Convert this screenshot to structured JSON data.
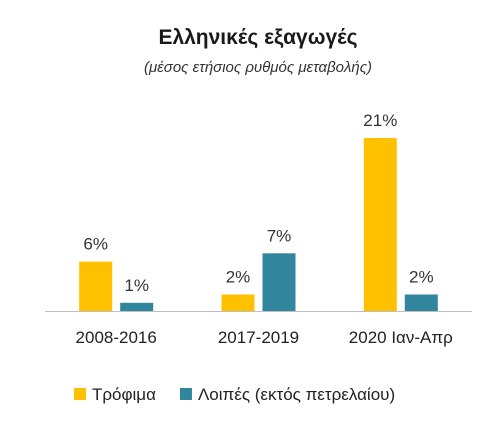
{
  "chart_data": {
    "type": "bar",
    "title": "Ελληνικές εξαγωγές",
    "subtitle": "(μέσος ετήσιος ρυθμός μεταβολής)",
    "categories": [
      "2008-2016",
      "2017-2019",
      "2020 Ιαν-Απρ"
    ],
    "series": [
      {
        "name": "Τρόφιμα",
        "color": "#FFC000",
        "values": [
          6,
          2,
          21
        ],
        "labels": [
          "6%",
          "2%",
          "21%"
        ]
      },
      {
        "name": "Λοιπές (εκτός πετρελαίου)",
        "color": "#31859C",
        "values": [
          1,
          7,
          2
        ],
        "labels": [
          "1%",
          "7%",
          "2%"
        ]
      }
    ],
    "ylim": [
      0,
      25
    ],
    "unit": "%",
    "grid": false,
    "legend_position": "bottom"
  }
}
